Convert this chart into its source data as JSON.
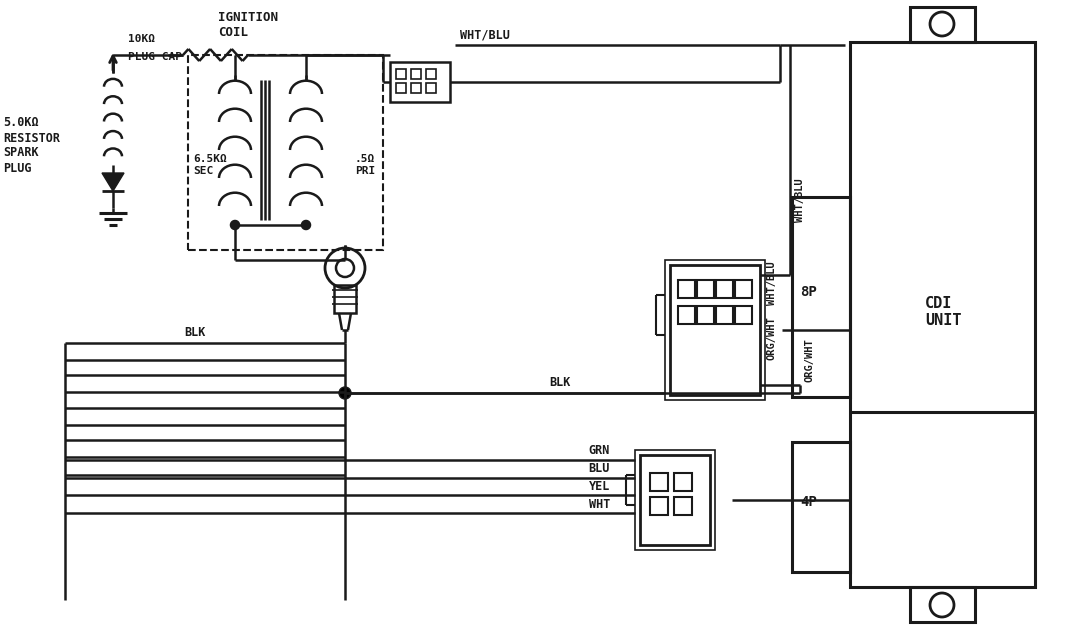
{
  "bg_color": "#ffffff",
  "line_color": "#1a1a1a",
  "labels": {
    "ignition_coil": "IGNITION\nCOIL",
    "plug_cap_line1": "10KΩ",
    "plug_cap_line2": "PLUG CAP",
    "sec_line1": "6.5KΩ",
    "sec_line2": "SEC",
    "pri_line1": ".5Ω",
    "pri_line2": "PRI",
    "spark_plug_line1": "5.0KΩ",
    "spark_plug_line2": "RESISTOR",
    "spark_plug_line3": "SPARK",
    "spark_plug_line4": "PLUG",
    "wht_blu_top": "WHT/BLU",
    "blk_top": "BLK",
    "blk_mid": "BLK",
    "org_wht": "ORG/WHT",
    "wht_blu_right": "WHT/BLU",
    "grn": "GRN",
    "blu": "BLU",
    "yel": "YEL",
    "wht": "WHT",
    "8p": "8P",
    "4p": "4P",
    "cdi_unit": "CDI\nUNIT"
  }
}
